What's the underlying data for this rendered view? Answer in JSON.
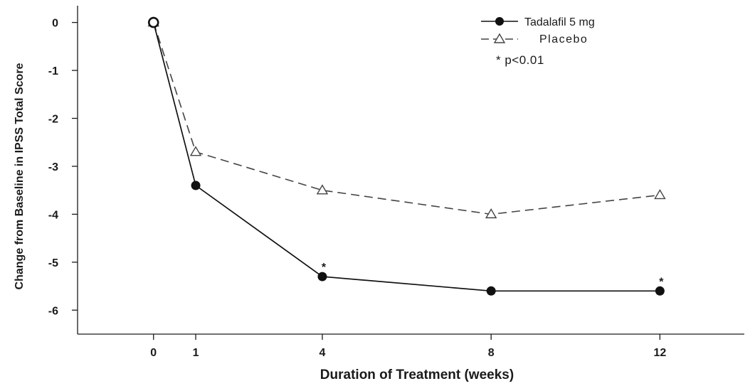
{
  "chart_data": {
    "type": "line",
    "xlabel": "Duration of Treatment (weeks)",
    "ylabel": "Change from Baseline in IPSS Total Score",
    "x": [
      0,
      1,
      4,
      8,
      12
    ],
    "xticks": [
      "0",
      "1",
      "4",
      "8",
      "12"
    ],
    "yticks": [
      "0",
      "-1",
      "-2",
      "-3",
      "-4",
      "-5",
      "-6"
    ],
    "xlim": [
      -1.8,
      14
    ],
    "ylim": [
      -6.5,
      0.35
    ],
    "grid": false,
    "legend_position": "top-right",
    "series": [
      {
        "name": "Tadalafil 5 mg",
        "values": [
          0,
          -3.4,
          -5.3,
          -5.6,
          -5.6
        ],
        "color": "#111111",
        "line_style": "solid",
        "marker": "filled-circle",
        "significance": [
          "",
          "",
          "*",
          "",
          "*"
        ]
      },
      {
        "name": "Placebo",
        "values": [
          0,
          -2.7,
          -3.5,
          -4.0,
          -3.6
        ],
        "color": "#444444",
        "line_style": "dashed",
        "marker": "open-triangle"
      }
    ],
    "annotation": "* p<0.01"
  }
}
